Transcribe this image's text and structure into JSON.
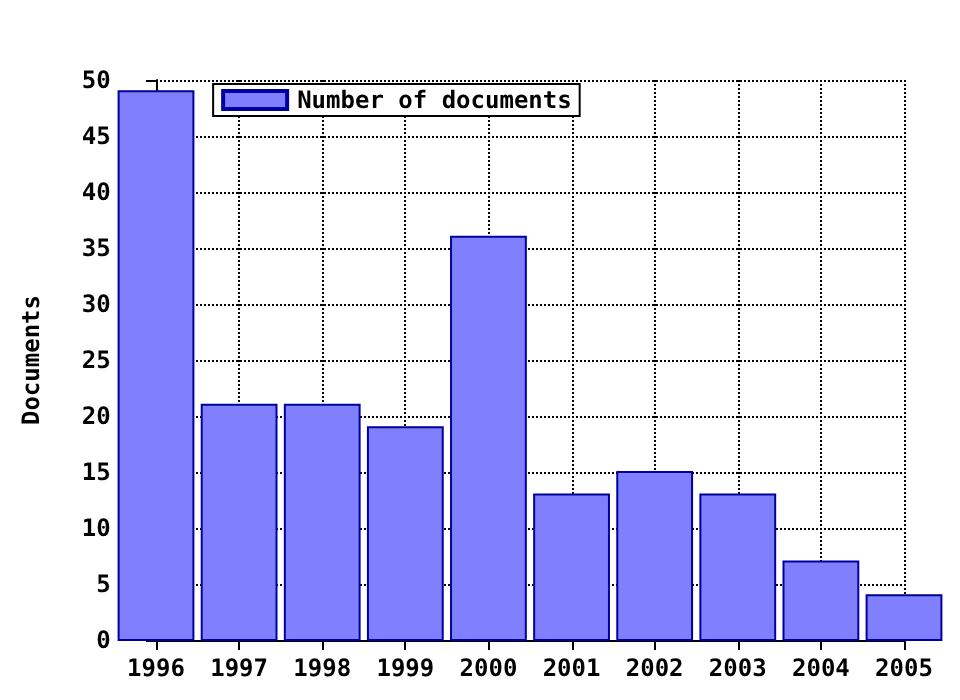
{
  "chart_data": {
    "type": "bar",
    "ylabel": "Documents",
    "x": [
      1996,
      1997,
      1998,
      1999,
      2000,
      2001,
      2002,
      2003,
      2004,
      2005
    ],
    "series": [
      {
        "name": "Number of documents",
        "color": "#8080ff",
        "values": [
          49,
          21,
          21,
          19,
          36,
          13,
          15,
          13,
          7,
          4
        ]
      }
    ],
    "xlim": [
      1996,
      2005
    ],
    "xticks": [
      1996,
      1997,
      1998,
      1999,
      2000,
      2001,
      2002,
      2003,
      2004,
      2005
    ],
    "ylim": [
      0,
      50
    ],
    "yticks": [
      0,
      5,
      10,
      15,
      20,
      25,
      30,
      35,
      40,
      45,
      50
    ],
    "grid": true,
    "legend": "top left"
  }
}
